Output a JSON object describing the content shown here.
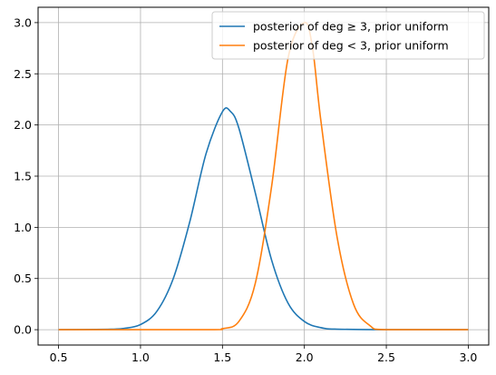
{
  "chart_data": {
    "type": "line",
    "title": "",
    "xlabel": "",
    "ylabel": "",
    "xlim": [
      0.375,
      3.125
    ],
    "ylim": [
      -0.15,
      3.15
    ],
    "xticks": [
      0.5,
      1.0,
      1.5,
      2.0,
      2.5,
      3.0
    ],
    "yticks": [
      0.0,
      0.5,
      1.0,
      1.5,
      2.0,
      2.5,
      3.0
    ],
    "xtick_labels": [
      "0.5",
      "1.0",
      "1.5",
      "2.0",
      "2.5",
      "3.0"
    ],
    "ytick_labels": [
      "0.0",
      "0.5",
      "1.0",
      "1.5",
      "2.0",
      "2.5",
      "3.0"
    ],
    "grid": true,
    "legend_position": "top-right",
    "series": [
      {
        "name": "posterior of deg ≥ 3, prior uniform",
        "color": "#1f77b4",
        "x": [
          0.5,
          0.8,
          0.9,
          1.0,
          1.1,
          1.2,
          1.3,
          1.4,
          1.5,
          1.55,
          1.6,
          1.7,
          1.8,
          1.9,
          2.0,
          2.1,
          2.2,
          2.5,
          3.0
        ],
        "y": [
          0.0,
          0.004,
          0.013,
          0.05,
          0.18,
          0.5,
          1.05,
          1.72,
          2.13,
          2.13,
          1.97,
          1.34,
          0.68,
          0.26,
          0.08,
          0.02,
          0.005,
          0.0,
          0.0
        ]
      },
      {
        "name": "posterior of deg < 3, prior uniform",
        "color": "#ff7f0e",
        "x": [
          0.5,
          1.4,
          1.5,
          1.6,
          1.7,
          1.8,
          1.9,
          2.0,
          2.05,
          2.1,
          2.2,
          2.3,
          2.4,
          2.5,
          3.0
        ],
        "y": [
          0.0,
          0.0,
          0.01,
          0.08,
          0.45,
          1.4,
          2.65,
          3.0,
          2.75,
          2.05,
          0.9,
          0.25,
          0.04,
          0.0,
          0.0
        ]
      }
    ]
  }
}
